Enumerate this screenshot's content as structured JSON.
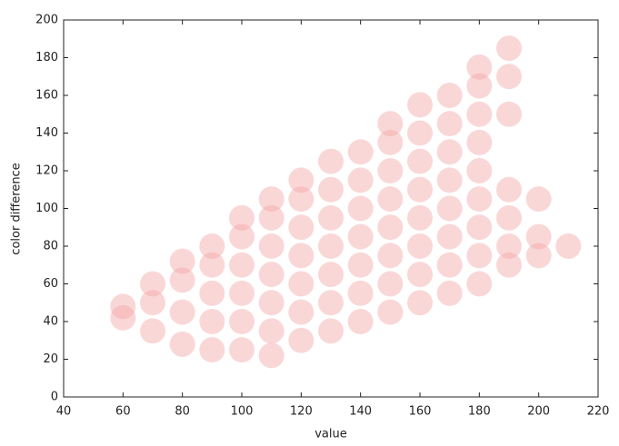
{
  "chart_data": {
    "type": "scatter",
    "xlabel": "value",
    "ylabel": "color difference",
    "xlim": [
      40,
      220
    ],
    "ylim": [
      0,
      200
    ],
    "xticks": [
      40,
      60,
      80,
      100,
      120,
      140,
      160,
      180,
      200,
      220
    ],
    "yticks": [
      0,
      20,
      40,
      60,
      80,
      100,
      120,
      140,
      160,
      180,
      200
    ],
    "grid": false,
    "x": [
      60,
      60,
      70,
      70,
      70,
      80,
      80,
      80,
      80,
      90,
      90,
      90,
      90,
      90,
      100,
      100,
      100,
      100,
      100,
      100,
      110,
      110,
      110,
      110,
      110,
      110,
      110,
      120,
      120,
      120,
      120,
      120,
      120,
      120,
      130,
      130,
      130,
      130,
      130,
      130,
      130,
      140,
      140,
      140,
      140,
      140,
      140,
      140,
      150,
      150,
      150,
      150,
      150,
      150,
      150,
      150,
      160,
      160,
      160,
      160,
      160,
      160,
      160,
      160,
      170,
      170,
      170,
      170,
      170,
      170,
      170,
      170,
      180,
      180,
      180,
      180,
      180,
      180,
      180,
      180,
      180,
      190,
      190,
      190,
      190,
      190,
      190,
      190,
      200,
      200,
      200,
      210
    ],
    "series": [
      {
        "color": "#f4a6a6",
        "values": [
          42,
          48,
          35,
          50,
          60,
          28,
          45,
          62,
          72,
          25,
          40,
          55,
          70,
          80,
          25,
          40,
          55,
          70,
          85,
          95,
          22,
          35,
          50,
          65,
          80,
          95,
          105,
          30,
          45,
          60,
          75,
          90,
          105,
          115,
          35,
          50,
          65,
          80,
          95,
          110,
          125,
          40,
          55,
          70,
          85,
          100,
          115,
          130,
          45,
          60,
          75,
          90,
          105,
          120,
          135,
          145,
          50,
          65,
          80,
          95,
          110,
          125,
          140,
          155,
          55,
          70,
          85,
          100,
          115,
          130,
          145,
          160,
          60,
          75,
          90,
          105,
          120,
          135,
          150,
          165,
          175,
          70,
          80,
          95,
          110,
          150,
          170,
          185,
          75,
          85,
          105,
          80
        ]
      }
    ]
  }
}
